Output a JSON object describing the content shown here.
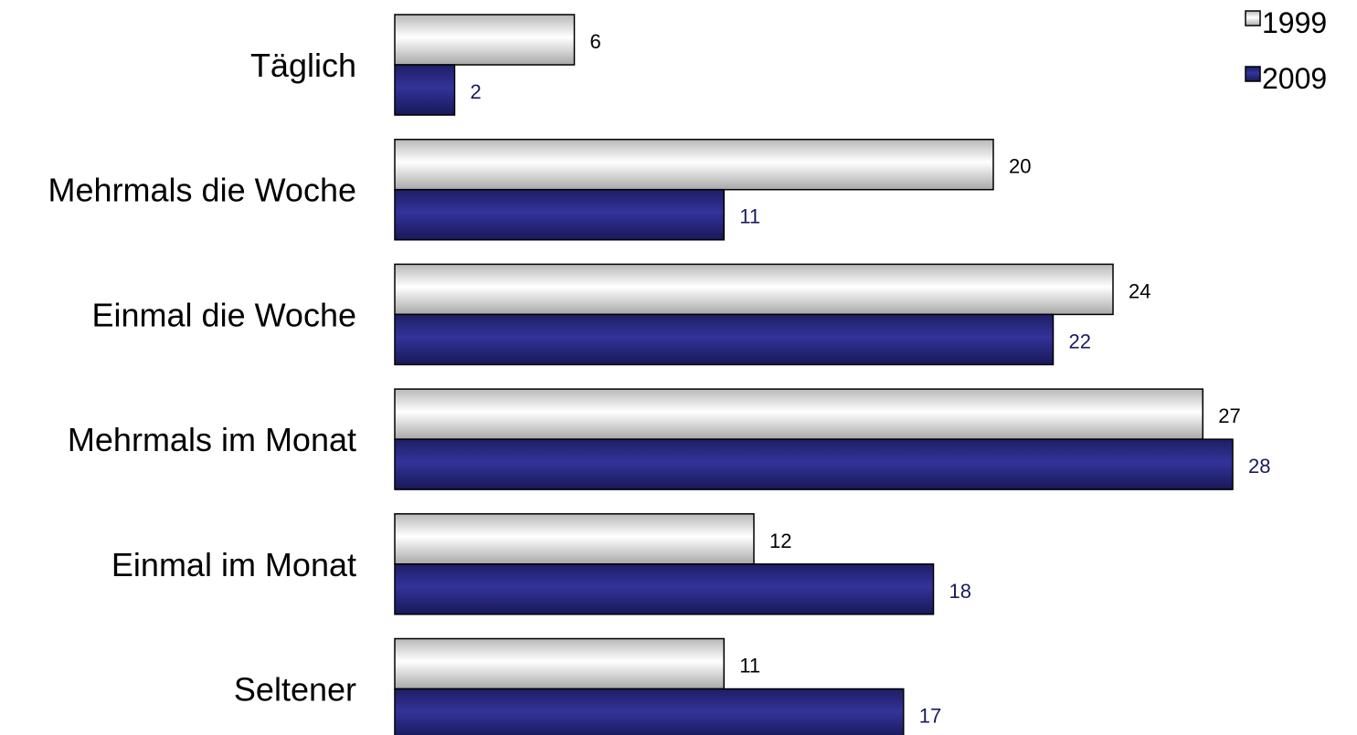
{
  "chart_data": {
    "type": "bar",
    "orientation": "horizontal",
    "categories": [
      "Täglich",
      "Mehrmals die Woche",
      "Einmal die Woche",
      "Mehrmals im Monat",
      "Einmal im Monat",
      "Seltener"
    ],
    "series": [
      {
        "name": "1999",
        "values": [
          6,
          20,
          24,
          27,
          12,
          11
        ],
        "color": "#e4e4e4",
        "label_color": "#000000"
      },
      {
        "name": "2009",
        "values": [
          2,
          11,
          22,
          28,
          18,
          17
        ],
        "color": "#2e2e8c",
        "label_color": "#1a1a5e"
      }
    ],
    "xlim": [
      0,
      28
    ],
    "grid": false,
    "legend_position": "top-right",
    "title": "",
    "xlabel": "",
    "ylabel": ""
  }
}
